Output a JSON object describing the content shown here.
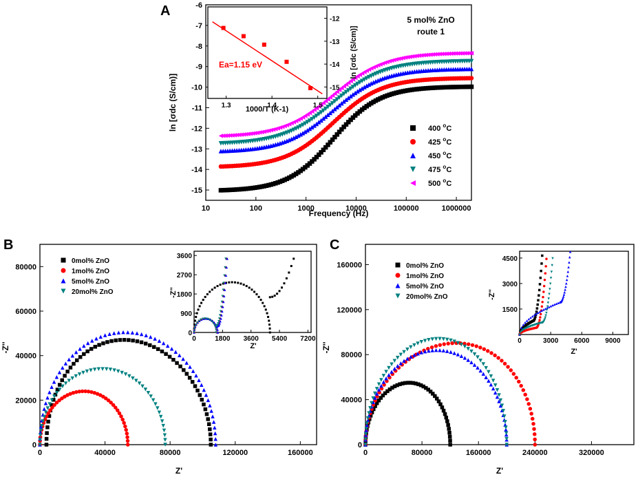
{
  "chart_data": [
    {
      "panel": "A",
      "type": "scatter",
      "xscale": "log",
      "xlim": [
        10,
        2000000
      ],
      "ylim": [
        -15.5,
        -6
      ],
      "xlabel": "Frequency (Hz)",
      "ylabel": "ln [σdc (S/cm)]",
      "xticks": [
        "10",
        "100",
        "1000",
        "10000",
        "100000",
        "1000000"
      ],
      "yticks": [
        "-6",
        "-7",
        "-8",
        "-9",
        "-10",
        "-11",
        "-12",
        "-13",
        "-14",
        "-15"
      ],
      "annotation": {
        "line1": "5 mol% ZnO",
        "line2": "route 1"
      },
      "series": [
        {
          "name": "400 °C",
          "temp": "400",
          "marker": "square",
          "color": "#000000",
          "low": -15.05,
          "high": -9.97,
          "fc": 3500,
          "n": 0.95
        },
        {
          "name": "425 °C",
          "temp": "425",
          "marker": "circle",
          "color": "#ff0000",
          "low": -13.9,
          "high": -9.55,
          "fc": 3500,
          "n": 0.9
        },
        {
          "name": "450 °C",
          "temp": "450",
          "marker": "triangle-up",
          "color": "#0000ff",
          "low": -13.15,
          "high": -9.1,
          "fc": 3500,
          "n": 0.88
        },
        {
          "name": "475 °C",
          "temp": "475",
          "marker": "triangle-down",
          "color": "#008080",
          "low": -12.78,
          "high": -8.72,
          "fc": 3500,
          "n": 0.86
        },
        {
          "name": "500 °C",
          "temp": "500",
          "marker": "triangle-left",
          "color": "#ff00ff",
          "low": -12.42,
          "high": -8.33,
          "fc": 3500,
          "n": 0.85
        }
      ],
      "inset": {
        "type": "line",
        "xlabel": "1000/T (K-1)",
        "ylabel": "ln [σdc (S/cm)]",
        "xlim": [
          1.26,
          1.52
        ],
        "ylim": [
          -15.5,
          -11.5
        ],
        "xticks": [
          "1.3",
          "1.4",
          "1.5"
        ],
        "yticks": [
          "-12",
          "-13",
          "-14",
          "-15"
        ],
        "x": [
          1.294,
          1.338,
          1.383,
          1.432,
          1.484
        ],
        "y": [
          -12.42,
          -12.78,
          -13.15,
          -13.9,
          -15.05
        ],
        "fit": {
          "x": [
            1.27,
            1.51
          ],
          "y": [
            -12.15,
            -15.3
          ]
        },
        "color": "#ff0000",
        "label": "Ea=1.15 eV"
      }
    },
    {
      "panel": "B",
      "type": "scatter",
      "xlabel": "Z'",
      "ylabel": "-Z''",
      "xlim": [
        0,
        170000
      ],
      "ylim": [
        0,
        90000
      ],
      "xticks": [
        "0",
        "40000",
        "80000",
        "120000",
        "160000"
      ],
      "yticks": [
        "0",
        "20000",
        "40000",
        "60000",
        "80000"
      ],
      "series": [
        {
          "name": "0mol% ZnO",
          "marker": "square",
          "color": "#000000",
          "start": 4000,
          "end": 105000,
          "peak": 47000,
          "skew": 0.4,
          "count": 60
        },
        {
          "name": "1mol% ZnO",
          "marker": "circle",
          "color": "#ff0000",
          "start": 0,
          "end": 54000,
          "peak": 24000,
          "skew": 0.5,
          "count": 45
        },
        {
          "name": "5mol% ZnO",
          "marker": "triangle-up",
          "color": "#0000ff",
          "start": 0,
          "end": 108000,
          "peak": 50500,
          "skew": 0.45,
          "count": 60
        },
        {
          "name": "20mol% ZnO",
          "marker": "triangle-down",
          "color": "#008080",
          "start": 0,
          "end": 77000,
          "peak": 34000,
          "skew": 0.5,
          "count": 50
        }
      ],
      "inset": {
        "xlabel": "Z'",
        "ylabel": "-Z''",
        "xlim": [
          0,
          7400
        ],
        "ylim": [
          0,
          3800
        ],
        "xticks": [
          "0",
          "1800",
          "3600",
          "5400",
          "7200"
        ],
        "yticks": [
          "0",
          "900",
          "1800",
          "2700",
          "3600"
        ]
      }
    },
    {
      "panel": "C",
      "type": "scatter",
      "xlabel": "Z'",
      "ylabel": "-Z''",
      "xlim": [
        0,
        380000
      ],
      "ylim": [
        0,
        178000
      ],
      "xticks": [
        "0",
        "80000",
        "160000",
        "240000",
        "320000"
      ],
      "yticks": [
        "0",
        "40000",
        "80000",
        "120000",
        "160000"
      ],
      "series": [
        {
          "name": "0mol% ZnO",
          "marker": "square",
          "color": "#000000",
          "start": 0,
          "end": 120000,
          "peak": 55000,
          "skew": 0.55,
          "count": 50
        },
        {
          "name": "1mol% ZnO",
          "marker": "circle",
          "color": "#ff0000",
          "start": 0,
          "end": 240000,
          "peak": 90000,
          "skew": 0.62,
          "count": 65
        },
        {
          "name": "5mol% ZnO",
          "marker": "triangle-up",
          "color": "#0000ff",
          "start": 0,
          "end": 200000,
          "peak": 84000,
          "skew": 0.52,
          "count": 60
        },
        {
          "name": "20mol% ZnO",
          "marker": "triangle-down",
          "color": "#008080",
          "start": 0,
          "end": 200000,
          "peak": 94000,
          "skew": 0.56,
          "count": 60
        }
      ],
      "inset": {
        "xlabel": "Z'",
        "ylabel": "-Z''",
        "xlim": [
          0,
          10500
        ],
        "ylim": [
          0,
          4900
        ],
        "xticks": [
          "0",
          "3000",
          "6000",
          "9000"
        ],
        "yticks": [
          "1500",
          "3000",
          "4500"
        ]
      }
    }
  ]
}
